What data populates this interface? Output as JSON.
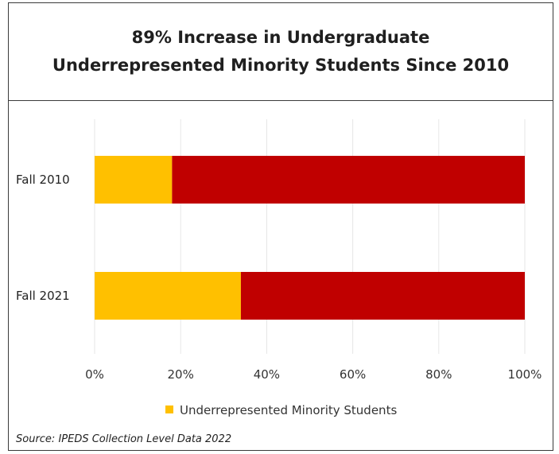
{
  "colors": {
    "title_bg": "#f4595b",
    "urm": "#ffc000",
    "other": "#c00000",
    "grid": "#e6e6e6"
  },
  "chart_data": {
    "type": "bar",
    "orientation": "horizontal",
    "stacked": true,
    "percent_stacked": true,
    "title": "89% Increase in Undergraduate\nUnderrepresented Minority Students Since 2010",
    "categories": [
      "Fall 2010",
      "Fall 2021"
    ],
    "series": [
      {
        "name": "Underrepresented Minority Students",
        "values": [
          18,
          34
        ],
        "color": "#ffc000"
      },
      {
        "values": [
          82,
          66
        ],
        "color": "#c00000"
      }
    ],
    "xlim": [
      0,
      100
    ],
    "xticks": [
      "0%",
      "20%",
      "40%",
      "60%",
      "80%",
      "100%"
    ],
    "grid": true,
    "legend_position": "bottom"
  },
  "source": "Source: IPEDS Collection Level Data 2022"
}
